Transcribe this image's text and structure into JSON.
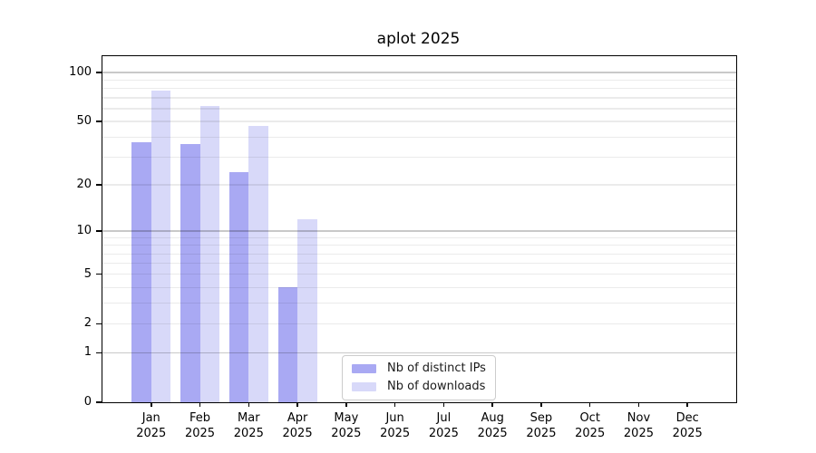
{
  "title": "aplot 2025",
  "chart_data": {
    "type": "bar",
    "title": "aplot 2025",
    "categories": [
      "Jan",
      "Feb",
      "Mar",
      "Apr",
      "May",
      "Jun",
      "Jul",
      "Aug",
      "Sep",
      "Oct",
      "Nov",
      "Dec"
    ],
    "x_year_label": "2025",
    "series": [
      {
        "name": "Nb of distinct IPs",
        "color": "#a9a9f3",
        "values": [
          37,
          36,
          24,
          4,
          0,
          0,
          0,
          0,
          0,
          0,
          0,
          0
        ]
      },
      {
        "name": "Nb of downloads",
        "color": "#d8d9f9",
        "values": [
          77,
          62,
          47,
          12,
          0,
          0,
          0,
          0,
          0,
          0,
          0,
          0
        ]
      }
    ],
    "y_scale": "log10(1+x)",
    "ylim": [
      0,
      126
    ],
    "y_tick_values": [
      0,
      1,
      2,
      5,
      10,
      20,
      50,
      100
    ],
    "y_major_gridlines": [
      1,
      10,
      100
    ],
    "y_minor_gridlines": [
      2,
      3,
      4,
      5,
      6,
      7,
      8,
      9,
      20,
      30,
      40,
      50,
      60,
      70,
      80,
      90
    ],
    "grid": true,
    "legend_position": "lower-center"
  }
}
